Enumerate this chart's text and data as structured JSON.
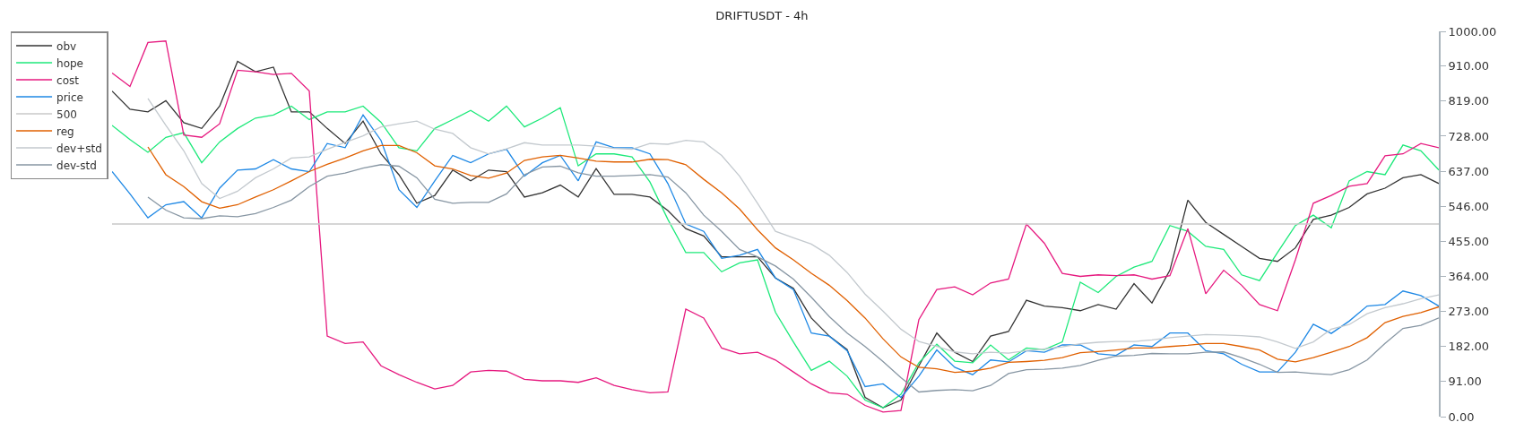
{
  "chart_data": {
    "type": "line",
    "title": "DRIFTUSDT - 4h",
    "categories": [
      null,
      null,
      null,
      null,
      null,
      null,
      null,
      null,
      null,
      null,
      null,
      null,
      null,
      null,
      null,
      null,
      null,
      null,
      null,
      null,
      null,
      null,
      null,
      null,
      null,
      null,
      null,
      null,
      null,
      null,
      null,
      null,
      null,
      null,
      null,
      null,
      null,
      null,
      null,
      null,
      null,
      null,
      null,
      null,
      null,
      null,
      null,
      null,
      null,
      null,
      null,
      null,
      null,
      null,
      null,
      null,
      null,
      null,
      null,
      null,
      null,
      null,
      null,
      null,
      null,
      null,
      null,
      null,
      null,
      null,
      null,
      null,
      null,
      null,
      null
    ],
    "series": [
      {
        "name": "obv",
        "color": "#333333",
        "values": [
          845,
          798,
          791,
          820,
          763,
          748,
          806,
          922,
          895,
          907,
          791,
          791,
          748,
          709,
          767,
          682,
          628,
          554,
          574,
          640,
          612,
          640,
          636,
          570,
          581,
          601,
          570,
          644,
          577,
          577,
          570,
          535,
          488,
          469,
          415,
          415,
          415,
          360,
          333,
          256,
          209,
          174,
          50,
          23,
          43,
          132,
          217,
          167,
          143,
          209,
          221,
          302,
          287,
          283,
          275,
          291,
          279,
          345,
          295,
          380,
          562,
          504,
          473,
          442,
          411,
          403,
          438,
          512,
          523,
          543,
          578,
          593,
          620,
          628,
          605
        ]
      },
      {
        "name": "hope",
        "color": "#1de97a",
        "values": [
          756,
          719,
          686,
          725,
          737,
          659,
          713,
          748,
          775,
          783,
          806,
          771,
          791,
          791,
          806,
          764,
          698,
          690,
          748,
          771,
          795,
          767,
          806,
          752,
          775,
          802,
          651,
          682,
          682,
          674,
          609,
          512,
          426,
          426,
          376,
          399,
          407,
          271,
          194,
          120,
          144,
          105,
          43,
          23,
          58,
          140,
          188,
          144,
          140,
          186,
          147,
          178,
          174,
          194,
          349,
          322,
          364,
          388,
          403,
          496,
          481,
          442,
          434,
          368,
          353,
          426,
          496,
          523,
          490,
          612,
          636,
          628,
          705,
          690,
          640
        ]
      },
      {
        "name": "cost",
        "color": "#e6197f",
        "values": [
          892,
          857,
          971,
          975,
          731,
          725,
          760,
          899,
          895,
          888,
          891,
          845,
          209,
          190,
          194,
          132,
          109,
          89,
          72,
          81,
          116,
          120,
          118,
          97,
          93,
          93,
          89,
          101,
          81,
          70,
          62,
          64,
          279,
          256,
          178,
          163,
          167,
          147,
          116,
          85,
          62,
          58,
          29,
          12,
          16,
          252,
          330,
          337,
          316,
          347,
          357,
          500,
          450,
          372,
          364,
          368,
          366,
          368,
          357,
          366,
          488,
          319,
          380,
          341,
          291,
          275,
          407,
          554,
          574,
          598,
          605,
          677,
          682,
          709,
          698
        ]
      },
      {
        "name": "price",
        "color": "#1e88e5",
        "values": [
          636,
          578,
          516,
          550,
          558,
          516,
          593,
          640,
          643,
          667,
          643,
          636,
          709,
          698,
          783,
          717,
          589,
          543,
          612,
          678,
          659,
          682,
          694,
          624,
          659,
          678,
          612,
          713,
          698,
          698,
          682,
          605,
          500,
          481,
          411,
          419,
          434,
          360,
          330,
          217,
          209,
          171,
          78,
          85,
          50,
          105,
          173,
          128,
          109,
          147,
          142,
          171,
          167,
          186,
          186,
          163,
          159,
          186,
          182,
          217,
          217,
          171,
          163,
          136,
          116,
          116,
          167,
          240,
          216,
          248,
          287,
          291,
          326,
          314,
          287
        ]
      },
      {
        "name": "500",
        "color": "#c8c8c8",
        "values": [
          500,
          500,
          500,
          500,
          500,
          500,
          500,
          500,
          500,
          500,
          500,
          500,
          500,
          500,
          500,
          500,
          500,
          500,
          500,
          500,
          500,
          500,
          500,
          500,
          500,
          500,
          500,
          500,
          500,
          500,
          500,
          500,
          500,
          500,
          500,
          500,
          500,
          500,
          500,
          500,
          500,
          500,
          500,
          500,
          500,
          500,
          500,
          500,
          500,
          500,
          500,
          500,
          500,
          500,
          500,
          500,
          500,
          500,
          500,
          500,
          500,
          500,
          500,
          500,
          500,
          500,
          500,
          500,
          500,
          500,
          500,
          500,
          500,
          500,
          500
        ]
      },
      {
        "name": "reg",
        "color": "#e06000",
        "values": [
          null,
          null,
          700,
          628,
          597,
          558,
          541,
          550,
          570,
          589,
          612,
          636,
          655,
          671,
          690,
          704,
          704,
          685,
          651,
          643,
          626,
          619,
          632,
          665,
          674,
          678,
          671,
          663,
          661,
          661,
          668,
          667,
          654,
          616,
          581,
          539,
          485,
          438,
          407,
          372,
          341,
          301,
          256,
          202,
          155,
          128,
          124,
          115,
          118,
          126,
          141,
          143,
          146,
          153,
          166,
          169,
          173,
          178,
          178,
          182,
          185,
          190,
          190,
          182,
          173,
          149,
          142,
          153,
          167,
          182,
          205,
          244,
          260,
          270,
          285
        ]
      },
      {
        "name": "dev+std",
        "color": "#c3c9ce",
        "values": [
          null,
          null,
          826,
          756,
          690,
          605,
          566,
          585,
          620,
          643,
          671,
          674,
          694,
          712,
          729,
          752,
          760,
          767,
          746,
          735,
          698,
          682,
          695,
          711,
          705,
          705,
          705,
          702,
          696,
          694,
          709,
          707,
          717,
          713,
          678,
          624,
          554,
          481,
          464,
          448,
          419,
          374,
          318,
          274,
          227,
          195,
          182,
          168,
          163,
          167,
          165,
          171,
          176,
          181,
          189,
          193,
          195,
          195,
          199,
          205,
          209,
          213,
          212,
          210,
          207,
          194,
          177,
          194,
          227,
          239,
          267,
          283,
          293,
          306,
          316
        ]
      },
      {
        "name": "dev-std",
        "color": "#8796a3",
        "values": [
          null,
          null,
          570,
          536,
          516,
          514,
          521,
          519,
          527,
          543,
          562,
          597,
          624,
          632,
          645,
          654,
          650,
          620,
          564,
          554,
          556,
          556,
          578,
          628,
          648,
          650,
          633,
          624,
          624,
          626,
          628,
          622,
          581,
          523,
          481,
          434,
          415,
          391,
          357,
          310,
          260,
          217,
          182,
          143,
          101,
          64,
          68,
          70,
          67,
          81,
          112,
          122,
          123,
          126,
          133,
          146,
          157,
          159,
          164,
          163,
          163,
          167,
          168,
          153,
          136,
          115,
          116,
          112,
          109,
          122,
          147,
          190,
          229,
          237,
          256
        ]
      }
    ],
    "ylim": [
      0,
      1000
    ],
    "yticks": [
      {
        "value": 0,
        "label": "0.00"
      },
      {
        "value": 91,
        "label": "91.00"
      },
      {
        "value": 182,
        "label": "182.00"
      },
      {
        "value": 273,
        "label": "273.00"
      },
      {
        "value": 364,
        "label": "364.00"
      },
      {
        "value": 455,
        "label": "455.00"
      },
      {
        "value": 546,
        "label": "546.00"
      },
      {
        "value": 637,
        "label": "637.00"
      },
      {
        "value": 728,
        "label": "728.00"
      },
      {
        "value": 819,
        "label": "819.00"
      },
      {
        "value": 910,
        "label": "910.00"
      },
      {
        "value": 1000,
        "label": "1000.00"
      }
    ],
    "legend": "top left",
    "tick_labels": "y"
  }
}
